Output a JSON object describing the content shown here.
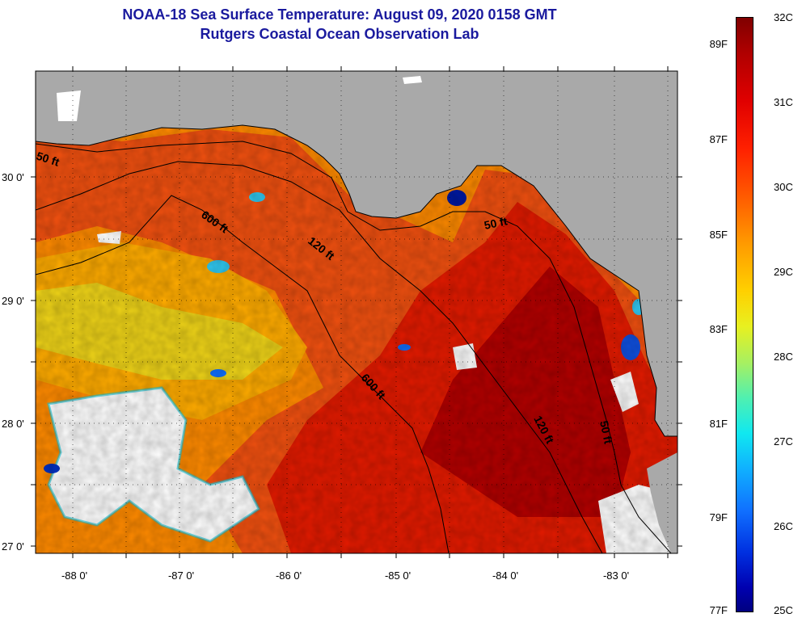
{
  "title": {
    "line1": "NOAA-18 Sea Surface Temperature:  August 09, 2020 0158 GMT",
    "line2": "Rutgers Coastal Ocean Observation Lab"
  },
  "map": {
    "lat_labels": [
      "30 0'",
      "29 0'",
      "28 0'",
      "27 0'"
    ],
    "lon_labels": [
      "-88 0'",
      "-87 0'",
      "-86 0'",
      "-85 0'",
      "-84 0'",
      "-83 0'"
    ],
    "contour_labels": [
      "50 ft",
      "600 ft",
      "120 ft",
      "50 ft",
      "600 ft",
      "120 ft",
      "50 ft"
    ],
    "colors": {
      "land": "#a9a9a9",
      "cloud": "#ffffff",
      "warm": "#e21a00",
      "hot": "#a80000",
      "mild": "#ff8a00"
    }
  },
  "colorbar": {
    "fahrenheit": [
      "89F",
      "87F",
      "85F",
      "83F",
      "81F",
      "79F",
      "77F"
    ],
    "celsius": [
      "32C",
      "31C",
      "30C",
      "29C",
      "28C",
      "27C",
      "26C",
      "25C"
    ],
    "range_c": [
      25,
      32
    ],
    "range_f": [
      77,
      89.6
    ]
  }
}
